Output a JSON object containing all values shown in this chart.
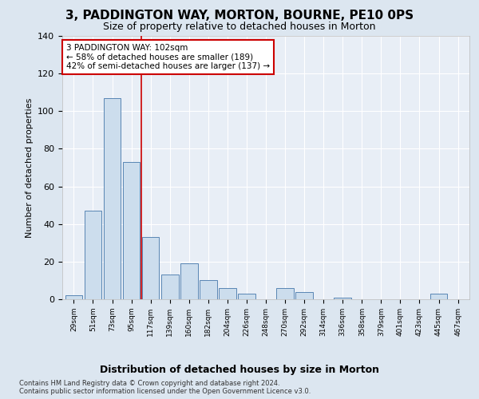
{
  "title": "3, PADDINGTON WAY, MORTON, BOURNE, PE10 0PS",
  "subtitle": "Size of property relative to detached houses in Morton",
  "xlabel": "Distribution of detached houses by size in Morton",
  "ylabel": "Number of detached properties",
  "categories": [
    "29sqm",
    "51sqm",
    "73sqm",
    "95sqm",
    "117sqm",
    "139sqm",
    "160sqm",
    "182sqm",
    "204sqm",
    "226sqm",
    "248sqm",
    "270sqm",
    "292sqm",
    "314sqm",
    "336sqm",
    "358sqm",
    "379sqm",
    "401sqm",
    "423sqm",
    "445sqm",
    "467sqm"
  ],
  "values": [
    2,
    47,
    107,
    73,
    33,
    13,
    19,
    10,
    6,
    3,
    0,
    6,
    4,
    0,
    1,
    0,
    0,
    0,
    0,
    3,
    0
  ],
  "bar_color": "#ccdded",
  "bar_edge_color": "#4477aa",
  "vline_x_index": 3.5,
  "annotation_text": "3 PADDINGTON WAY: 102sqm\n← 58% of detached houses are smaller (189)\n42% of semi-detached houses are larger (137) →",
  "annotation_box_color": "#ffffff",
  "annotation_box_edge": "#cc0000",
  "vline_color": "#cc0000",
  "footer_text": "Contains HM Land Registry data © Crown copyright and database right 2024.\nContains public sector information licensed under the Open Government Licence v3.0.",
  "ylim": [
    0,
    140
  ],
  "yticks": [
    0,
    20,
    40,
    60,
    80,
    100,
    120,
    140
  ],
  "bg_color": "#dce6f0",
  "plot_bg_color": "#e8eef6",
  "grid_color": "#ffffff",
  "title_fontsize": 11,
  "subtitle_fontsize": 9,
  "xlabel_fontsize": 9
}
